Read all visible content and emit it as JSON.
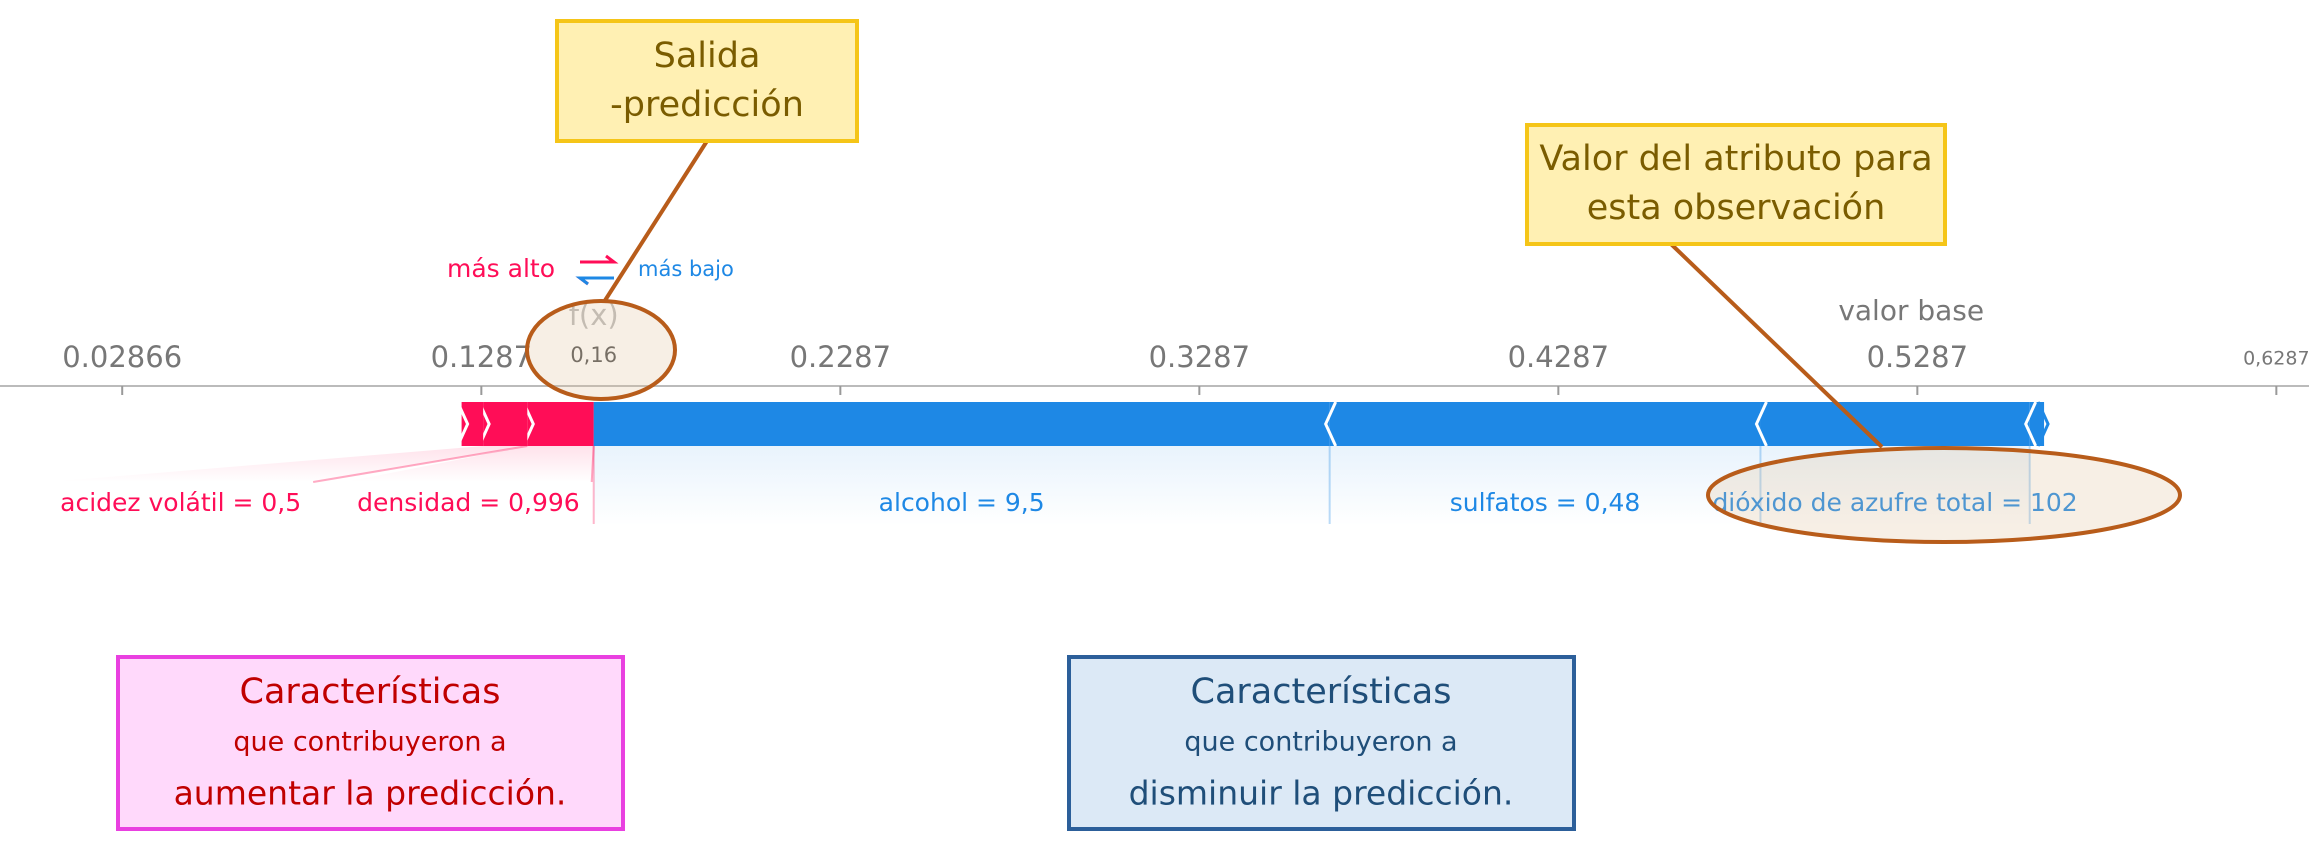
{
  "chart_data": {
    "type": "force",
    "higher_label": "más alto",
    "lower_label": "más bajo",
    "output_label": "f(x)",
    "output_value": 0.16,
    "output_value_label": "0,16",
    "base_label": "valor base",
    "base_value": 0.527,
    "xlim": [
      0.0,
      0.64
    ],
    "xticks": [
      0.02866,
      0.1287,
      0.2287,
      0.3287,
      0.4287,
      0.5287,
      {
        "value": 0.6287,
        "label": "0,6287"
      }
    ],
    "positive_color": "#ff0d57",
    "negative_color": "#1e88e5",
    "positive": [
      {
        "name": "densidad = 0,996",
        "value": 0.0185
      },
      {
        "name": "acidez volátil = 0,5",
        "value": 0.0123
      },
      {
        "name": null,
        "value": 0.006
      }
    ],
    "negative": [
      {
        "name": "alcohol = 9,5",
        "value": 0.205
      },
      {
        "name": "sulfatos = 0,48",
        "value": 0.12
      },
      {
        "name": "dióxido de azufre total = 102",
        "value": 0.075
      },
      {
        "name": null,
        "value": 0.004
      }
    ],
    "annotations": [
      {
        "lines": [
          "Salida",
          "-predicción"
        ]
      },
      {
        "lines": [
          "Valor del atributo para",
          "esta observación"
        ]
      },
      {
        "lines": [
          "Características",
          "que contribuyeron a",
          "aumentar la predicción."
        ]
      },
      {
        "lines": [
          "Características",
          "que contribuyeron a",
          "disminuir la predicción."
        ]
      }
    ]
  }
}
